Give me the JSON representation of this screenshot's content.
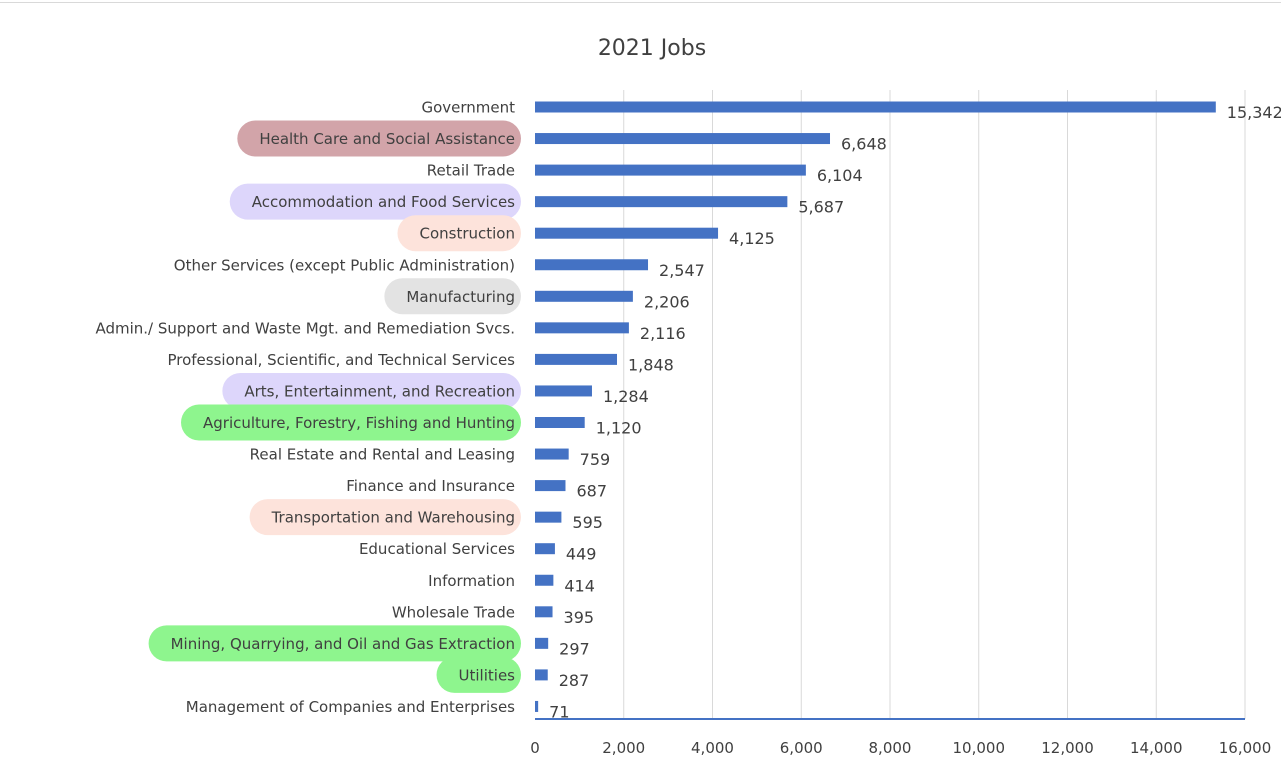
{
  "chart_data": {
    "type": "bar",
    "orientation": "horizontal",
    "title": "2021 Jobs",
    "categories": [
      "Government",
      "Health Care and Social Assistance",
      "Retail Trade",
      "Accommodation and Food Services",
      "Construction",
      "Other Services (except Public Administration)",
      "Manufacturing",
      "Admin./ Support and Waste Mgt. and Remediation Svcs.",
      "Professional, Scientific, and Technical Services",
      "Arts, Entertainment, and Recreation",
      "Agriculture, Forestry, Fishing and Hunting",
      "Real Estate and Rental and Leasing",
      "Finance and Insurance",
      "Transportation and Warehousing",
      "Educational Services",
      "Information",
      "Wholesale Trade",
      "Mining, Quarrying, and Oil and Gas Extraction",
      "Utilities",
      "Management of Companies and Enterprises"
    ],
    "values": [
      15342,
      6648,
      6104,
      5687,
      4125,
      2547,
      2206,
      2116,
      1848,
      1284,
      1120,
      759,
      687,
      595,
      449,
      414,
      395,
      297,
      287,
      71
    ],
    "value_labels": [
      "15,342",
      "6,648",
      "6,104",
      "5,687",
      "4,125",
      "2,547",
      "2,206",
      "2,116",
      "1,848",
      "1,284",
      "1,120",
      "759",
      "687",
      "595",
      "449",
      "414",
      "395",
      "297",
      "287",
      "71"
    ],
    "xlim": [
      0,
      16000
    ],
    "xticks": [
      0,
      2000,
      4000,
      6000,
      8000,
      10000,
      12000,
      14000,
      16000
    ],
    "xtick_labels": [
      "0",
      "2,000",
      "4,000",
      "6,000",
      "8,000",
      "10,000",
      "12,000",
      "14,000",
      "16,000"
    ],
    "grid": "vertical",
    "bar_color": "#4472c4",
    "highlights": [
      {
        "category": "Health Care and Social Assistance",
        "color": "#d2a4a9"
      },
      {
        "category": "Accommodation and Food Services",
        "color": "#ddd6fb"
      },
      {
        "category": "Construction",
        "color": "#fde3db"
      },
      {
        "category": "Manufacturing",
        "color": "#e3e3e3"
      },
      {
        "category": "Arts, Entertainment, and Recreation",
        "color": "#ddd6fb"
      },
      {
        "category": "Agriculture, Forestry, Fishing and Hunting",
        "color": "#8ef58e"
      },
      {
        "category": "Transportation and Warehousing",
        "color": "#fde3db"
      },
      {
        "category": "Mining, Quarrying, and Oil and Gas Extraction",
        "color": "#8ef58e"
      },
      {
        "category": "Utilities",
        "color": "#8ef58e"
      }
    ]
  }
}
